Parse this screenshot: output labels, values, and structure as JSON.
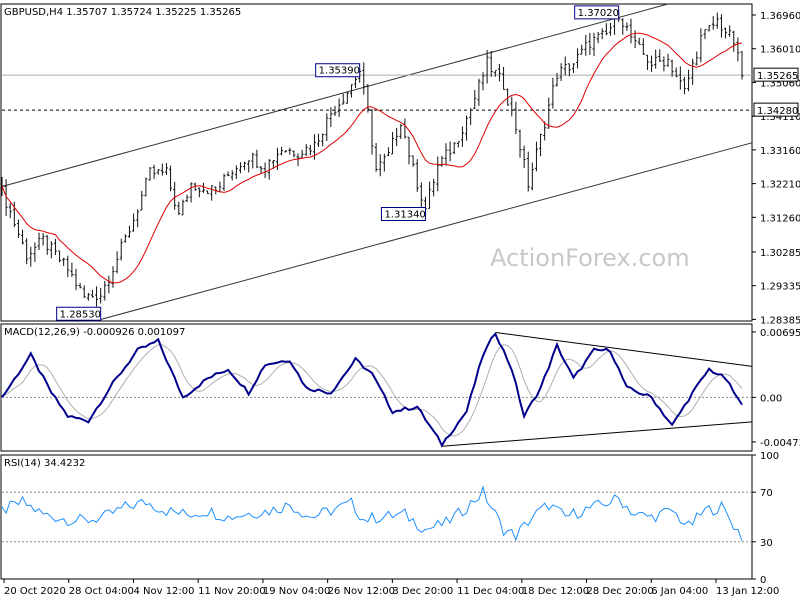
{
  "chart_data": [
    {
      "type": "candlestick",
      "title": "GBPUSD,H4  1.35707  1.35724  1.35225  1.35265",
      "y_ticks": [
        "1.36960",
        "1.36010",
        "1.35060",
        "1.34110",
        "1.33160",
        "1.32210",
        "1.31260",
        "1.30285",
        "1.29335",
        "1.28385"
      ],
      "ylim": [
        1.2834,
        1.3727
      ],
      "last_price": "1.35265",
      "support_level": "1.34280",
      "price_callouts": [
        "1.37020",
        "1.35390",
        "1.31340",
        "1.28530"
      ],
      "ma_color": "#e00000",
      "candle_color": "#111111",
      "approx_path": [
        [
          0,
          1.32
        ],
        [
          6,
          1.302
        ],
        [
          10,
          1.306
        ],
        [
          16,
          1.298
        ],
        [
          20,
          1.29
        ],
        [
          24,
          1.291
        ],
        [
          28,
          1.301
        ],
        [
          32,
          1.312
        ],
        [
          36,
          1.325
        ],
        [
          40,
          1.325
        ],
        [
          43,
          1.313
        ],
        [
          46,
          1.322
        ],
        [
          52,
          1.32
        ],
        [
          56,
          1.326
        ],
        [
          60,
          1.33
        ],
        [
          64,
          1.327
        ],
        [
          68,
          1.332
        ],
        [
          72,
          1.331
        ],
        [
          76,
          1.333
        ],
        [
          80,
          1.342
        ],
        [
          84,
          1.348
        ],
        [
          87,
          1.3539
        ],
        [
          89,
          1.342
        ],
        [
          91,
          1.326
        ],
        [
          94,
          1.33
        ],
        [
          97,
          1.34
        ],
        [
          100,
          1.326
        ],
        [
          103,
          1.315
        ],
        [
          106,
          1.327
        ],
        [
          110,
          1.333
        ],
        [
          114,
          1.343
        ],
        [
          118,
          1.356
        ],
        [
          122,
          1.35
        ],
        [
          125,
          1.338
        ],
        [
          128,
          1.322
        ],
        [
          131,
          1.335
        ],
        [
          135,
          1.353
        ],
        [
          139,
          1.356
        ],
        [
          143,
          1.362
        ],
        [
          147,
          1.364
        ],
        [
          150,
          1.3702
        ],
        [
          154,
          1.361
        ],
        [
          158,
          1.356
        ],
        [
          162,
          1.357
        ],
        [
          166,
          1.348
        ],
        [
          170,
          1.363
        ],
        [
          174,
          1.368
        ],
        [
          178,
          1.362
        ],
        [
          180,
          1.3526
        ]
      ]
    },
    {
      "type": "line",
      "title": "MACD(12,26,9) -0.000926 0.001097",
      "y_ticks": [
        "0.006956",
        "0.00",
        "-0.004736"
      ],
      "ylim": [
        -0.0057,
        0.0078
      ],
      "macd_color": "#00008b",
      "signal_color": "#b0b0b0",
      "approx_path": [
        [
          0,
          0.0
        ],
        [
          7,
          0.0045
        ],
        [
          12,
          0.0005
        ],
        [
          16,
          -0.002
        ],
        [
          21,
          -0.0025
        ],
        [
          27,
          0.0015
        ],
        [
          33,
          0.005
        ],
        [
          38,
          0.006
        ],
        [
          44,
          0.0
        ],
        [
          50,
          0.002
        ],
        [
          55,
          0.003
        ],
        [
          60,
          0.0005
        ],
        [
          64,
          0.0035
        ],
        [
          70,
          0.004
        ],
        [
          74,
          0.001
        ],
        [
          80,
          0.0005
        ],
        [
          86,
          0.004
        ],
        [
          90,
          0.0025
        ],
        [
          95,
          -0.0015
        ],
        [
          101,
          -0.001
        ],
        [
          107,
          -0.005
        ],
        [
          113,
          -0.0015
        ],
        [
          117,
          0.0045
        ],
        [
          120,
          0.0069
        ],
        [
          124,
          0.003
        ],
        [
          127,
          -0.002
        ],
        [
          131,
          0.001
        ],
        [
          135,
          0.0055
        ],
        [
          139,
          0.002
        ],
        [
          144,
          0.005
        ],
        [
          148,
          0.005
        ],
        [
          152,
          0.001
        ],
        [
          158,
          0.0
        ],
        [
          163,
          -0.003
        ],
        [
          168,
          0.0005
        ],
        [
          172,
          0.003
        ],
        [
          176,
          0.002
        ],
        [
          180,
          -0.0009
        ]
      ]
    },
    {
      "type": "line",
      "title": "RSI(14) 34.4232",
      "y_ticks": [
        "100",
        "70",
        "30",
        "0"
      ],
      "ylim": [
        0,
        100
      ],
      "line_color": "#1e90ff",
      "approx_path": [
        [
          0,
          55
        ],
        [
          5,
          62
        ],
        [
          10,
          52
        ],
        [
          16,
          48
        ],
        [
          20,
          47
        ],
        [
          25,
          50
        ],
        [
          30,
          58
        ],
        [
          35,
          62
        ],
        [
          40,
          55
        ],
        [
          45,
          52
        ],
        [
          50,
          55
        ],
        [
          55,
          50
        ],
        [
          60,
          53
        ],
        [
          65,
          55
        ],
        [
          70,
          60
        ],
        [
          75,
          50
        ],
        [
          80,
          55
        ],
        [
          85,
          61
        ],
        [
          88,
          48
        ],
        [
          92,
          50
        ],
        [
          98,
          52
        ],
        [
          103,
          40
        ],
        [
          108,
          45
        ],
        [
          112,
          55
        ],
        [
          117,
          70
        ],
        [
          122,
          40
        ],
        [
          125,
          35
        ],
        [
          129,
          50
        ],
        [
          133,
          60
        ],
        [
          137,
          50
        ],
        [
          141,
          55
        ],
        [
          146,
          60
        ],
        [
          150,
          65
        ],
        [
          154,
          52
        ],
        [
          158,
          50
        ],
        [
          163,
          55
        ],
        [
          167,
          42
        ],
        [
          171,
          55
        ],
        [
          175,
          58
        ],
        [
          180,
          34
        ]
      ]
    }
  ],
  "x_axis": {
    "tick_labels": [
      "20 Oct 2020",
      "28 Oct 04:00",
      "4 Nov 12:00",
      "11 Nov 20:00",
      "19 Nov 04:00",
      "26 Nov 12:00",
      "3 Dec 20:00",
      "11 Dec 04:00",
      "18 Dec 12:00",
      "28 Dec 20:00",
      "6 Jan 04:00",
      "13 Jan 12:00"
    ]
  },
  "watermark": "ActionForex.com"
}
